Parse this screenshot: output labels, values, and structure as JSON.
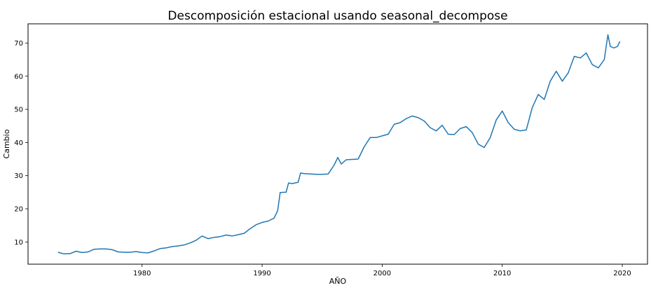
{
  "chart_data": {
    "type": "line",
    "title": "Descomposición estacional usando seasonal_decompose",
    "xlabel": "AÑO",
    "ylabel": "Cambio",
    "xlim": [
      1970.5,
      2022.1
    ],
    "ylim": [
      3.3,
      75.8
    ],
    "x_ticks": [
      1980,
      1990,
      2000,
      2010,
      2020
    ],
    "y_ticks": [
      10,
      20,
      30,
      40,
      50,
      60,
      70
    ],
    "grid": false,
    "legend": "none",
    "line_color": "#1f77b4",
    "series": [
      {
        "x": [
          1973.0,
          1973.5,
          1974.0,
          1974.5,
          1975.0,
          1975.5,
          1976.0,
          1976.5,
          1977.0,
          1977.5,
          1978.0,
          1978.5,
          1979.0,
          1979.5,
          1980.0,
          1980.5,
          1981.0,
          1981.5,
          1982.0,
          1982.5,
          1983.0,
          1983.5,
          1984.0,
          1984.5,
          1985.0,
          1985.5,
          1986.0,
          1986.5,
          1987.0,
          1987.5,
          1988.0,
          1988.5,
          1989.0,
          1989.5,
          1990.0,
          1990.5,
          1991.0,
          1991.3,
          1991.5,
          1992.0,
          1992.2,
          1992.5,
          1993.0,
          1993.2,
          1993.5,
          1994.0,
          1994.5,
          1995.0,
          1995.5,
          1996.0,
          1996.3,
          1996.6,
          1997.0,
          1997.5,
          1998.0,
          1998.5,
          1999.0,
          1999.5,
          2000.0,
          2000.5,
          2001.0,
          2001.5,
          2002.0,
          2002.5,
          2003.0,
          2003.5,
          2004.0,
          2004.5,
          2005.0,
          2005.5,
          2006.0,
          2006.5,
          2007.0,
          2007.5,
          2008.0,
          2008.5,
          2009.0,
          2009.5,
          2010.0,
          2010.5,
          2011.0,
          2011.5,
          2012.0,
          2012.5,
          2013.0,
          2013.5,
          2014.0,
          2014.5,
          2015.0,
          2015.5,
          2016.0,
          2016.5,
          2017.0,
          2017.5,
          2018.0,
          2018.5,
          2018.8,
          2019.0,
          2019.3,
          2019.6,
          2019.8
        ],
        "values": [
          6.9,
          6.4,
          6.5,
          7.2,
          6.8,
          7.0,
          7.8,
          7.9,
          7.9,
          7.7,
          7.0,
          6.9,
          6.9,
          7.1,
          6.8,
          6.7,
          7.3,
          8.0,
          8.2,
          8.6,
          8.8,
          9.1,
          9.7,
          10.5,
          11.8,
          11.0,
          11.4,
          11.6,
          12.1,
          11.8,
          12.2,
          12.6,
          14.0,
          15.2,
          15.9,
          16.3,
          17.2,
          19.5,
          24.9,
          25.0,
          27.8,
          27.6,
          28.0,
          30.8,
          30.6,
          30.5,
          30.4,
          30.4,
          30.5,
          33.2,
          35.5,
          33.5,
          34.8,
          34.9,
          35.0,
          38.7,
          41.5,
          41.5,
          42.0,
          42.5,
          45.5,
          46.0,
          47.2,
          48.0,
          47.5,
          46.5,
          44.5,
          43.5,
          45.2,
          42.5,
          42.4,
          44.2,
          44.8,
          43.0,
          39.5,
          38.5,
          41.5,
          46.8,
          49.5,
          46.0,
          44.0,
          43.5,
          43.8,
          50.5,
          54.5,
          53.0,
          58.5,
          61.5,
          58.5,
          61.0,
          66.0,
          65.5,
          67.0,
          63.5,
          62.5,
          65.0,
          72.5,
          69.0,
          68.5,
          69.0,
          70.5
        ]
      }
    ]
  }
}
